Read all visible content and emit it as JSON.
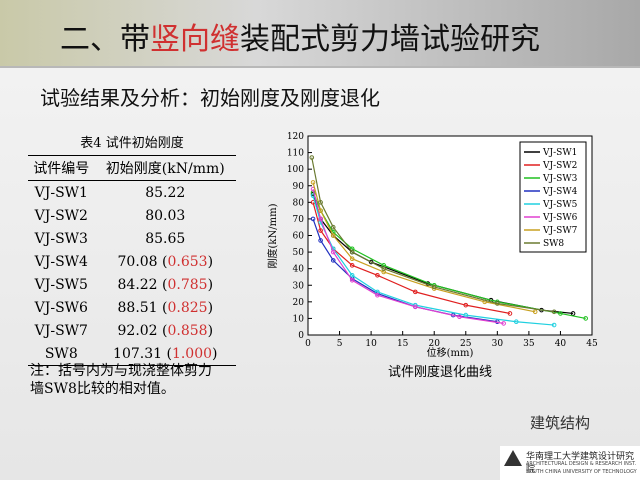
{
  "header": {
    "title": [
      "二、带",
      "竖向缝",
      "装配式剪力墙试验研究"
    ]
  },
  "subtitle": "试验结果及分析：初始刚度及刚度退化",
  "table": {
    "caption": "表4 试件初始刚度",
    "header": [
      "试件编号",
      "初始刚度(kN/mm)"
    ],
    "rows": [
      [
        "VJ-SW1",
        [
          "85.22"
        ]
      ],
      [
        "VJ-SW2",
        [
          "80.03"
        ]
      ],
      [
        "VJ-SW3",
        [
          "85.65"
        ]
      ],
      [
        "VJ-SW4",
        [
          "70.08 (",
          "0.653",
          ")"
        ]
      ],
      [
        "VJ-SW5",
        [
          "84.22 (",
          "0.785",
          ")"
        ]
      ],
      [
        "VJ-SW6",
        [
          "88.51 (",
          "0.825",
          ")"
        ]
      ],
      [
        "VJ-SW7",
        [
          "92.02 (",
          "0.858",
          ")"
        ]
      ],
      [
        "SW8",
        [
          "107.31 (",
          "1.000",
          ")"
        ]
      ]
    ]
  },
  "note": [
    "注：括号内为与现浇整体剪力",
    "墙SW8比较的相对值。"
  ],
  "chart_data": {
    "type": "line",
    "caption": "试件刚度退化曲线",
    "xlabel": "位移(mm)",
    "ylabel": "刚度(kN/mm)",
    "xlim": [
      0,
      45
    ],
    "ylim": [
      0,
      120
    ],
    "xticks": [
      0,
      5,
      10,
      15,
      20,
      25,
      30,
      35,
      40,
      45
    ],
    "yticks": [
      0,
      10,
      20,
      30,
      40,
      50,
      60,
      70,
      80,
      90,
      100,
      110,
      120
    ],
    "series": [
      {
        "name": "VJ-SW1",
        "color": "#000000",
        "x": [
          0.8,
          2,
          4,
          7,
          10,
          19,
          29,
          37,
          42
        ],
        "values": [
          85,
          70,
          60,
          50,
          44,
          31,
          21,
          15,
          13
        ]
      },
      {
        "name": "VJ-SW2",
        "color": "#e02020",
        "x": [
          0.8,
          2,
          4,
          7,
          11,
          17,
          25,
          32
        ],
        "values": [
          80,
          63,
          52,
          42,
          36,
          26,
          18,
          13
        ]
      },
      {
        "name": "VJ-SW3",
        "color": "#20c020",
        "x": [
          0.8,
          2,
          4,
          7,
          12,
          20,
          30,
          40,
          44
        ],
        "values": [
          86,
          75,
          62,
          52,
          42,
          30,
          20,
          13,
          10
        ]
      },
      {
        "name": "VJ-SW4",
        "color": "#2030c0",
        "x": [
          0.8,
          2,
          4,
          7,
          11,
          17,
          23,
          30
        ],
        "values": [
          70,
          57,
          45,
          34,
          25,
          17,
          12,
          8
        ]
      },
      {
        "name": "VJ-SW5",
        "color": "#20d0e0",
        "x": [
          0.8,
          2,
          4,
          7,
          11,
          17,
          25,
          33,
          39
        ],
        "values": [
          84,
          68,
          52,
          36,
          26,
          18,
          12,
          8,
          6
        ]
      },
      {
        "name": "VJ-SW6",
        "color": "#e040d0",
        "x": [
          0.8,
          2,
          4,
          7,
          11,
          17,
          24,
          31
        ],
        "values": [
          88,
          70,
          50,
          33,
          24,
          17,
          11,
          7
        ]
      },
      {
        "name": "VJ-SW7",
        "color": "#c8a020",
        "x": [
          0.8,
          2,
          4,
          7,
          12,
          20,
          28,
          36
        ],
        "values": [
          92,
          75,
          60,
          46,
          38,
          28,
          20,
          14
        ]
      },
      {
        "name": "SW8",
        "color": "#6a7a30",
        "x": [
          0.6,
          2,
          4,
          7,
          12,
          20,
          30,
          39
        ],
        "values": [
          107,
          80,
          65,
          50,
          40,
          29,
          19,
          14
        ]
      }
    ]
  },
  "footer": {
    "watermark": "建筑结构",
    "institute": "华南理工大学建筑设计研究院",
    "english": [
      "ARCHITECTURAL DESIGN & RESEARCH INST.",
      "SOUTH CHINA UNIVERSITY OF TECHNOLOGY"
    ]
  }
}
